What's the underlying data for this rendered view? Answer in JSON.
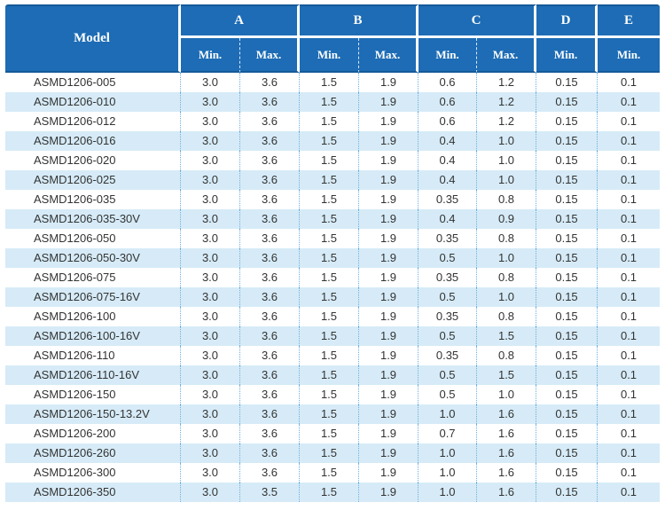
{
  "table": {
    "header": {
      "model_label": "Model",
      "groups": [
        {
          "label": "A",
          "subs": [
            "Min.",
            "Max."
          ]
        },
        {
          "label": "B",
          "subs": [
            "Min.",
            "Max."
          ]
        },
        {
          "label": "C",
          "subs": [
            "Min.",
            "Max."
          ]
        },
        {
          "label": "D",
          "subs": [
            "Min."
          ]
        },
        {
          "label": "E",
          "subs": [
            "Min."
          ]
        }
      ]
    },
    "rows": [
      {
        "model": "ASMD1206-005",
        "values": [
          "3.0",
          "3.6",
          "1.5",
          "1.9",
          "0.6",
          "1.2",
          "0.15",
          "0.1"
        ]
      },
      {
        "model": "ASMD1206-010",
        "values": [
          "3.0",
          "3.6",
          "1.5",
          "1.9",
          "0.6",
          "1.2",
          "0.15",
          "0.1"
        ]
      },
      {
        "model": "ASMD1206-012",
        "values": [
          "3.0",
          "3.6",
          "1.5",
          "1.9",
          "0.6",
          "1.2",
          "0.15",
          "0.1"
        ]
      },
      {
        "model": "ASMD1206-016",
        "values": [
          "3.0",
          "3.6",
          "1.5",
          "1.9",
          "0.4",
          "1.0",
          "0.15",
          "0.1"
        ]
      },
      {
        "model": "ASMD1206-020",
        "values": [
          "3.0",
          "3.6",
          "1.5",
          "1.9",
          "0.4",
          "1.0",
          "0.15",
          "0.1"
        ]
      },
      {
        "model": "ASMD1206-025",
        "values": [
          "3.0",
          "3.6",
          "1.5",
          "1.9",
          "0.4",
          "1.0",
          "0.15",
          "0.1"
        ]
      },
      {
        "model": "ASMD1206-035",
        "values": [
          "3.0",
          "3.6",
          "1.5",
          "1.9",
          "0.35",
          "0.8",
          "0.15",
          "0.1"
        ]
      },
      {
        "model": "ASMD1206-035-30V",
        "values": [
          "3.0",
          "3.6",
          "1.5",
          "1.9",
          "0.4",
          "0.9",
          "0.15",
          "0.1"
        ]
      },
      {
        "model": "ASMD1206-050",
        "values": [
          "3.0",
          "3.6",
          "1.5",
          "1.9",
          "0.35",
          "0.8",
          "0.15",
          "0.1"
        ]
      },
      {
        "model": "ASMD1206-050-30V",
        "values": [
          "3.0",
          "3.6",
          "1.5",
          "1.9",
          "0.5",
          "1.0",
          "0.15",
          "0.1"
        ]
      },
      {
        "model": "ASMD1206-075",
        "values": [
          "3.0",
          "3.6",
          "1.5",
          "1.9",
          "0.35",
          "0.8",
          "0.15",
          "0.1"
        ]
      },
      {
        "model": "ASMD1206-075-16V",
        "values": [
          "3.0",
          "3.6",
          "1.5",
          "1.9",
          "0.5",
          "1.0",
          "0.15",
          "0.1"
        ]
      },
      {
        "model": "ASMD1206-100",
        "values": [
          "3.0",
          "3.6",
          "1.5",
          "1.9",
          "0.35",
          "0.8",
          "0.15",
          "0.1"
        ]
      },
      {
        "model": "ASMD1206-100-16V",
        "values": [
          "3.0",
          "3.6",
          "1.5",
          "1.9",
          "0.5",
          "1.5",
          "0.15",
          "0.1"
        ]
      },
      {
        "model": "ASMD1206-110",
        "values": [
          "3.0",
          "3.6",
          "1.5",
          "1.9",
          "0.35",
          "0.8",
          "0.15",
          "0.1"
        ]
      },
      {
        "model": "ASMD1206-110-16V",
        "values": [
          "3.0",
          "3.6",
          "1.5",
          "1.9",
          "0.5",
          "1.5",
          "0.15",
          "0.1"
        ]
      },
      {
        "model": "ASMD1206-150",
        "values": [
          "3.0",
          "3.6",
          "1.5",
          "1.9",
          "0.5",
          "1.0",
          "0.15",
          "0.1"
        ]
      },
      {
        "model": "ASMD1206-150-13.2V",
        "values": [
          "3.0",
          "3.6",
          "1.5",
          "1.9",
          "1.0",
          "1.6",
          "0.15",
          "0.1"
        ]
      },
      {
        "model": "ASMD1206-200",
        "values": [
          "3.0",
          "3.6",
          "1.5",
          "1.9",
          "0.7",
          "1.6",
          "0.15",
          "0.1"
        ]
      },
      {
        "model": "ASMD1206-260",
        "values": [
          "3.0",
          "3.6",
          "1.5",
          "1.9",
          "1.0",
          "1.6",
          "0.15",
          "0.1"
        ]
      },
      {
        "model": "ASMD1206-300",
        "values": [
          "3.0",
          "3.6",
          "1.5",
          "1.9",
          "1.0",
          "1.6",
          "0.15",
          "0.1"
        ]
      },
      {
        "model": "ASMD1206-350",
        "values": [
          "3.0",
          "3.5",
          "1.5",
          "1.9",
          "1.0",
          "1.6",
          "0.15",
          "0.1"
        ]
      }
    ],
    "colors": {
      "header_bg": "#1d6cb5",
      "header_edge": "#155a99",
      "header_text": "#ffffff",
      "stripe_bg": "#d6ebf7",
      "divider_dotted": "#6fb0de",
      "body_text": "#333333"
    }
  }
}
